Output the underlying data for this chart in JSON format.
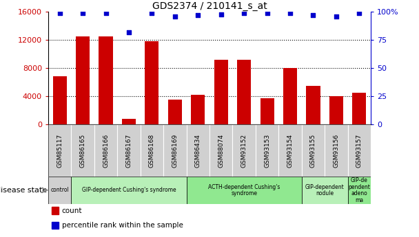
{
  "title": "GDS2374 / 210141_s_at",
  "samples": [
    "GSM85117",
    "GSM86165",
    "GSM86166",
    "GSM86167",
    "GSM86168",
    "GSM86169",
    "GSM86434",
    "GSM88074",
    "GSM93152",
    "GSM93153",
    "GSM93154",
    "GSM93155",
    "GSM93156",
    "GSM93157"
  ],
  "counts": [
    6800,
    12500,
    12500,
    800,
    11800,
    3500,
    4200,
    9200,
    9200,
    3700,
    8000,
    5500,
    4000,
    4500
  ],
  "percentiles": [
    99,
    99,
    99,
    82,
    99,
    96,
    97,
    98,
    99,
    99,
    99,
    97,
    96,
    99
  ],
  "bar_color": "#cc0000",
  "dot_color": "#0000cc",
  "ylim_left": [
    0,
    16000
  ],
  "ylim_right": [
    0,
    100
  ],
  "yticks_left": [
    0,
    4000,
    8000,
    12000,
    16000
  ],
  "yticks_right": [
    0,
    25,
    50,
    75,
    100
  ],
  "groups": [
    {
      "label": "control",
      "start": 0,
      "end": 1,
      "color": "#d0d0d0"
    },
    {
      "label": "GIP-dependent Cushing's syndrome",
      "start": 1,
      "end": 6,
      "color": "#b8f0b8"
    },
    {
      "label": "ACTH-dependent Cushing's\nsyndrome",
      "start": 6,
      "end": 11,
      "color": "#90e890"
    },
    {
      "label": "GIP-dependent\nnodule",
      "start": 11,
      "end": 13,
      "color": "#b8f0b8"
    },
    {
      "label": "GIP-de\npendent\nadeno\nma",
      "start": 13,
      "end": 14,
      "color": "#90e890"
    }
  ],
  "sample_band_color": "#d0d0d0",
  "xlabel_color": "#cc0000",
  "right_axis_color": "#0000cc",
  "grid_color": "#000000",
  "disease_state_label": "disease state",
  "bar_width": 0.6,
  "figsize": [
    6.08,
    3.45
  ],
  "dpi": 100
}
